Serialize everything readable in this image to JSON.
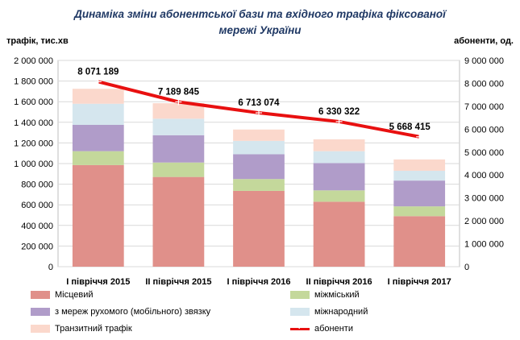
{
  "chart_data": {
    "type": "bar",
    "stacked": true,
    "title_line1": "Динаміка зміни абонентської бази та вхідного трафіка фіксованої",
    "title_line2": "мережі України",
    "ylabel_left": "трафік, тис.хв",
    "ylabel_right": "абоненти, од.",
    "categories": [
      "I півріччя 2015",
      "II півріччя 2015",
      "I півріччя 2016",
      "II півріччя 2016",
      "I півріччя 2017"
    ],
    "ylim_left": [
      0,
      2000000
    ],
    "ylim_right": [
      0,
      9000000
    ],
    "yticks_left": [
      "0",
      "200 000",
      "400 000",
      "600 000",
      "800 000",
      "1 000 000",
      "1 200 000",
      "1 400 000",
      "1 600 000",
      "1 800 000",
      "2 000 000"
    ],
    "yticks_right": [
      "0",
      "1 000 000",
      "2 000 000",
      "3 000 000",
      "4 000 000",
      "5 000 000",
      "6 000 000",
      "7 000 000",
      "8 000 000",
      "9 000 000"
    ],
    "series": [
      {
        "name": "Місцевий",
        "color": "#e0908a",
        "values": [
          985000,
          870000,
          735000,
          630000,
          490000
        ]
      },
      {
        "name": "міжміський",
        "color": "#c4d89b",
        "values": [
          135000,
          140000,
          115000,
          110000,
          95000
        ]
      },
      {
        "name": "з мереж рухомого (мобільного) звязку",
        "color": "#b09cc9",
        "values": [
          255000,
          265000,
          240000,
          265000,
          250000
        ]
      },
      {
        "name": "міжнародний",
        "color": "#d5e6ee",
        "values": [
          205000,
          160000,
          130000,
          115000,
          95000
        ]
      },
      {
        "name": "Транзитний трафік",
        "color": "#fbd8cc",
        "values": [
          145000,
          150000,
          110000,
          115000,
          110000
        ]
      }
    ],
    "line": {
      "name": "абоненти",
      "color": "#e81010",
      "axis": "right",
      "values": [
        8071189,
        7189845,
        6713074,
        6330322,
        5668415
      ],
      "labels": [
        "8 071 189",
        "7 189 845",
        "6 713 074",
        "6 330 322",
        "5 668 415"
      ]
    },
    "grid": true,
    "legend_position": "bottom"
  }
}
